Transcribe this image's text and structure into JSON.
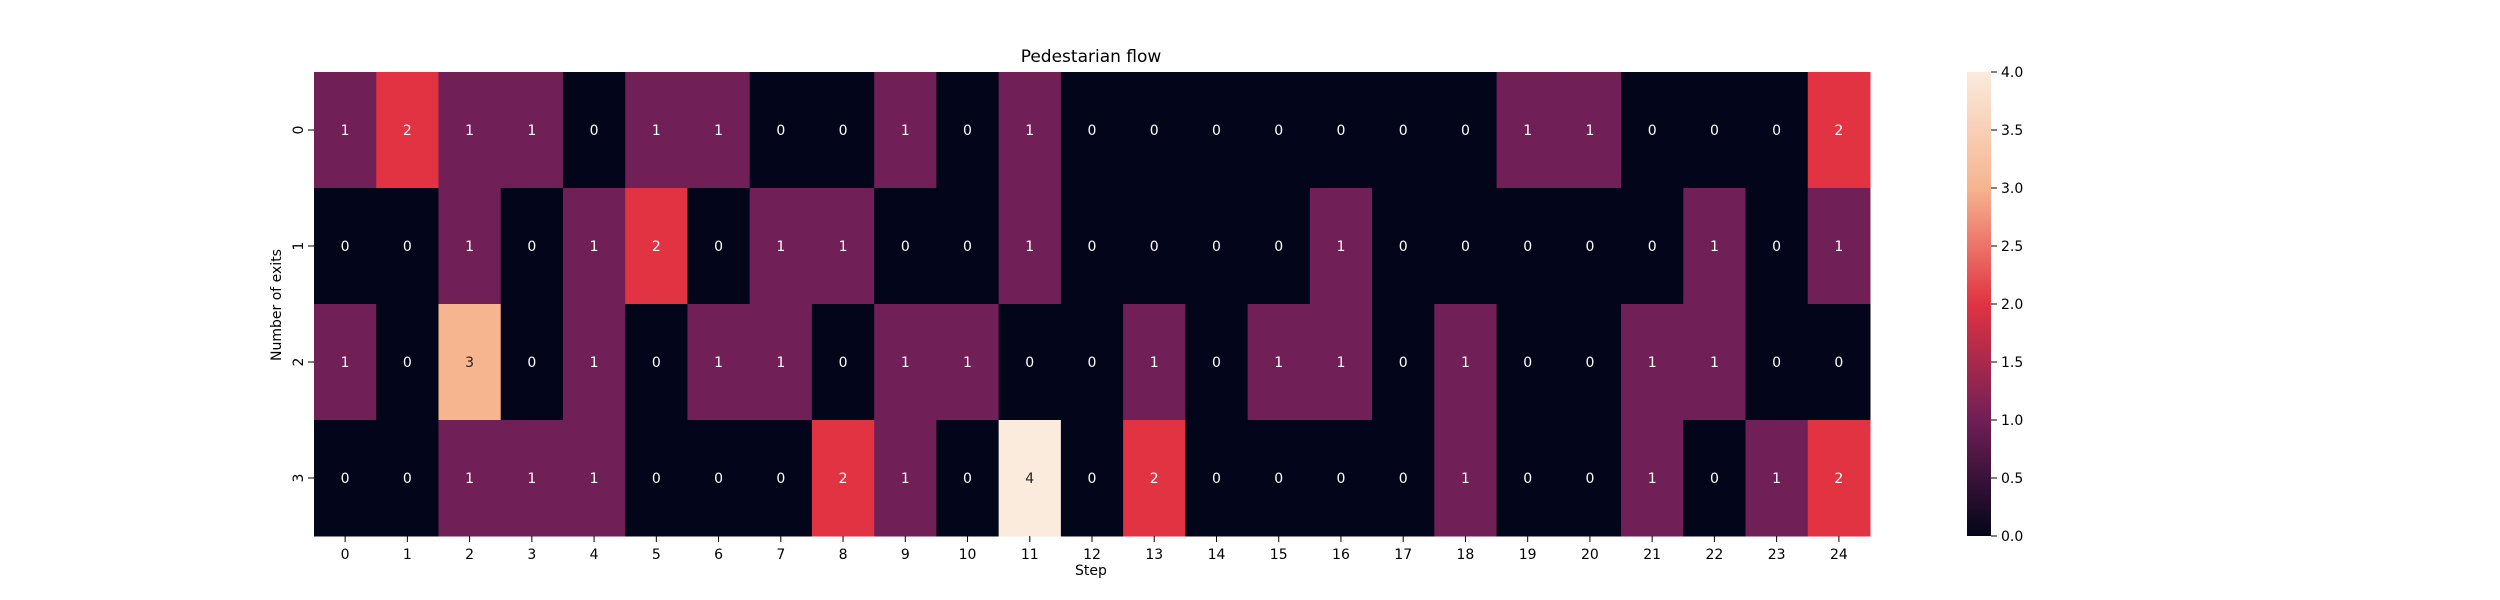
{
  "chart_data": {
    "type": "heatmap",
    "title": "Pedestarian flow",
    "xlabel": "Step",
    "ylabel": "Number of exits",
    "x_categories": [
      "0",
      "1",
      "2",
      "3",
      "4",
      "5",
      "6",
      "7",
      "8",
      "9",
      "10",
      "11",
      "12",
      "13",
      "14",
      "15",
      "16",
      "17",
      "18",
      "19",
      "20",
      "21",
      "22",
      "23",
      "24"
    ],
    "y_categories": [
      "0",
      "1",
      "2",
      "3"
    ],
    "values": [
      [
        1,
        2,
        1,
        1,
        0,
        1,
        1,
        0,
        0,
        1,
        0,
        1,
        0,
        0,
        0,
        0,
        0,
        0,
        0,
        1,
        1,
        0,
        0,
        0,
        2
      ],
      [
        0,
        0,
        1,
        0,
        1,
        2,
        0,
        1,
        1,
        0,
        0,
        1,
        0,
        0,
        0,
        0,
        1,
        0,
        0,
        0,
        0,
        0,
        1,
        0,
        1
      ],
      [
        1,
        0,
        3,
        0,
        1,
        0,
        1,
        1,
        0,
        1,
        1,
        0,
        0,
        1,
        0,
        1,
        1,
        0,
        1,
        0,
        0,
        1,
        1,
        0,
        0
      ],
      [
        0,
        0,
        1,
        1,
        1,
        0,
        0,
        0,
        2,
        1,
        0,
        4,
        0,
        2,
        0,
        0,
        0,
        0,
        1,
        0,
        0,
        1,
        0,
        1,
        2
      ]
    ],
    "annotated": true,
    "colorbar": {
      "range": [
        0,
        4
      ],
      "ticks": [
        "0.0",
        "0.5",
        "1.0",
        "1.5",
        "2.0",
        "2.5",
        "3.0",
        "3.5",
        "4.0"
      ],
      "colormap": "rocket",
      "stops": [
        "#03051a",
        "#701f57",
        "#e13342",
        "#f6b48f",
        "#faebdd"
      ]
    }
  }
}
